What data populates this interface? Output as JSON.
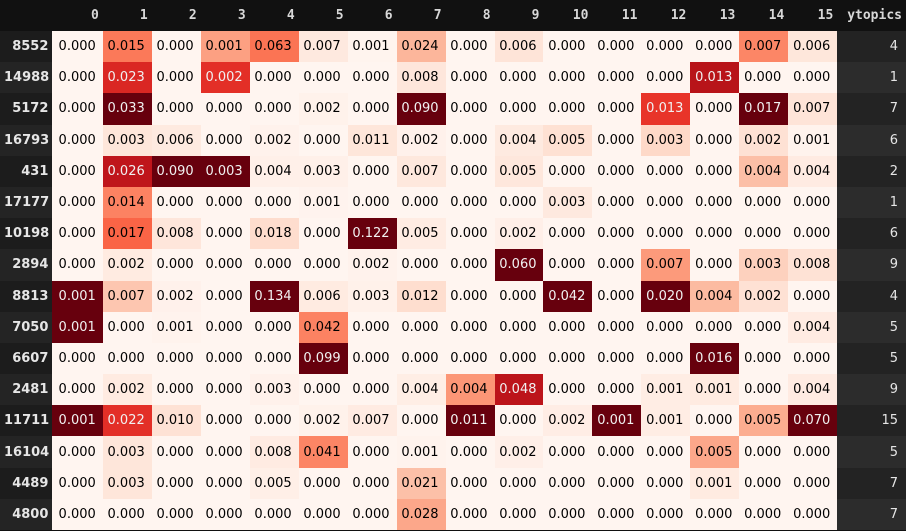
{
  "table": {
    "columns": [
      "0",
      "1",
      "2",
      "3",
      "4",
      "5",
      "6",
      "7",
      "8",
      "9",
      "10",
      "11",
      "12",
      "13",
      "14",
      "15"
    ],
    "target_column": "ytopics",
    "colormap": {
      "low": "#fff5f0",
      "high": "#67000d",
      "text_dark": "#000000",
      "text_light": "#f1f1f1"
    },
    "rows": [
      {
        "index": "8552",
        "values": [
          "0.000",
          "0.015",
          "0.000",
          "0.001",
          "0.063",
          "0.007",
          "0.001",
          "0.024",
          "0.000",
          "0.006",
          "0.000",
          "0.000",
          "0.000",
          "0.000",
          "0.007",
          "0.006"
        ],
        "ytopics": "4"
      },
      {
        "index": "14988",
        "values": [
          "0.000",
          "0.023",
          "0.000",
          "0.002",
          "0.000",
          "0.000",
          "0.000",
          "0.008",
          "0.000",
          "0.000",
          "0.000",
          "0.000",
          "0.000",
          "0.013",
          "0.000",
          "0.000"
        ],
        "ytopics": "1"
      },
      {
        "index": "5172",
        "values": [
          "0.000",
          "0.033",
          "0.000",
          "0.000",
          "0.000",
          "0.002",
          "0.000",
          "0.090",
          "0.000",
          "0.000",
          "0.000",
          "0.000",
          "0.013",
          "0.000",
          "0.017",
          "0.007"
        ],
        "ytopics": "7"
      },
      {
        "index": "16793",
        "values": [
          "0.000",
          "0.003",
          "0.006",
          "0.000",
          "0.002",
          "0.000",
          "0.011",
          "0.002",
          "0.000",
          "0.004",
          "0.005",
          "0.000",
          "0.003",
          "0.000",
          "0.002",
          "0.001"
        ],
        "ytopics": "6"
      },
      {
        "index": "431",
        "values": [
          "0.000",
          "0.026",
          "0.090",
          "0.003",
          "0.004",
          "0.003",
          "0.000",
          "0.007",
          "0.000",
          "0.005",
          "0.000",
          "0.000",
          "0.000",
          "0.000",
          "0.004",
          "0.004"
        ],
        "ytopics": "2"
      },
      {
        "index": "17177",
        "values": [
          "0.000",
          "0.014",
          "0.000",
          "0.000",
          "0.000",
          "0.001",
          "0.000",
          "0.000",
          "0.000",
          "0.000",
          "0.003",
          "0.000",
          "0.000",
          "0.000",
          "0.000",
          "0.000"
        ],
        "ytopics": "1"
      },
      {
        "index": "10198",
        "values": [
          "0.000",
          "0.017",
          "0.008",
          "0.000",
          "0.018",
          "0.000",
          "0.122",
          "0.005",
          "0.000",
          "0.002",
          "0.000",
          "0.000",
          "0.000",
          "0.000",
          "0.000",
          "0.000"
        ],
        "ytopics": "6"
      },
      {
        "index": "2894",
        "values": [
          "0.000",
          "0.002",
          "0.000",
          "0.000",
          "0.000",
          "0.000",
          "0.002",
          "0.000",
          "0.000",
          "0.060",
          "0.000",
          "0.000",
          "0.007",
          "0.000",
          "0.003",
          "0.008"
        ],
        "ytopics": "9"
      },
      {
        "index": "8813",
        "values": [
          "0.001",
          "0.007",
          "0.002",
          "0.000",
          "0.134",
          "0.006",
          "0.003",
          "0.012",
          "0.000",
          "0.000",
          "0.042",
          "0.000",
          "0.020",
          "0.004",
          "0.002",
          "0.000"
        ],
        "ytopics": "4"
      },
      {
        "index": "7050",
        "values": [
          "0.001",
          "0.000",
          "0.001",
          "0.000",
          "0.000",
          "0.042",
          "0.000",
          "0.000",
          "0.000",
          "0.000",
          "0.000",
          "0.000",
          "0.000",
          "0.000",
          "0.000",
          "0.004"
        ],
        "ytopics": "5"
      },
      {
        "index": "6607",
        "values": [
          "0.000",
          "0.000",
          "0.000",
          "0.000",
          "0.000",
          "0.099",
          "0.000",
          "0.000",
          "0.000",
          "0.000",
          "0.000",
          "0.000",
          "0.000",
          "0.016",
          "0.000",
          "0.000"
        ],
        "ytopics": "5"
      },
      {
        "index": "2481",
        "values": [
          "0.000",
          "0.002",
          "0.000",
          "0.000",
          "0.003",
          "0.000",
          "0.000",
          "0.004",
          "0.004",
          "0.048",
          "0.000",
          "0.000",
          "0.001",
          "0.001",
          "0.000",
          "0.004"
        ],
        "ytopics": "9"
      },
      {
        "index": "11711",
        "values": [
          "0.001",
          "0.022",
          "0.010",
          "0.000",
          "0.000",
          "0.002",
          "0.007",
          "0.000",
          "0.011",
          "0.000",
          "0.002",
          "0.001",
          "0.001",
          "0.000",
          "0.005",
          "0.070"
        ],
        "ytopics": "15"
      },
      {
        "index": "16104",
        "values": [
          "0.000",
          "0.003",
          "0.000",
          "0.000",
          "0.008",
          "0.041",
          "0.000",
          "0.001",
          "0.000",
          "0.002",
          "0.000",
          "0.000",
          "0.000",
          "0.005",
          "0.000",
          "0.000"
        ],
        "ytopics": "5"
      },
      {
        "index": "4489",
        "values": [
          "0.000",
          "0.003",
          "0.000",
          "0.000",
          "0.005",
          "0.000",
          "0.000",
          "0.021",
          "0.000",
          "0.000",
          "0.000",
          "0.000",
          "0.000",
          "0.001",
          "0.000",
          "0.000"
        ],
        "ytopics": "7"
      },
      {
        "index": "4800",
        "values": [
          "0.000",
          "0.000",
          "0.000",
          "0.000",
          "0.000",
          "0.000",
          "0.000",
          "0.028",
          "0.000",
          "0.000",
          "0.000",
          "0.000",
          "0.000",
          "0.000",
          "0.000",
          "0.000"
        ],
        "ytopics": "7"
      }
    ]
  }
}
